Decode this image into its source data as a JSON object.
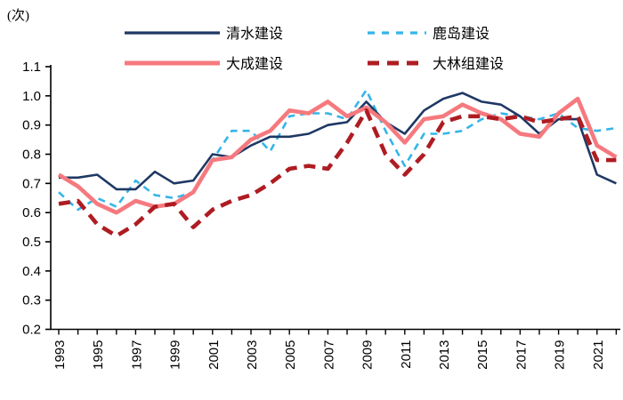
{
  "unit_label": "(次)",
  "legend": [
    {
      "key": "shimizu",
      "label": "清水建设"
    },
    {
      "key": "kajima",
      "label": "鹿岛建设"
    },
    {
      "key": "taisei",
      "label": "大成建设"
    },
    {
      "key": "obayashi",
      "label": "大林组建设"
    }
  ],
  "colors": {
    "shimizu": "#1f3864",
    "kajima": "#35b5e8",
    "taisei": "#f5797e",
    "obayashi": "#ae1c22",
    "axis": "#000000"
  },
  "chart_data": {
    "type": "line",
    "x": [
      1993,
      1994,
      1995,
      1996,
      1997,
      1998,
      1999,
      2000,
      2001,
      2002,
      2003,
      2004,
      2005,
      2006,
      2007,
      2008,
      2009,
      2010,
      2011,
      2012,
      2013,
      2014,
      2015,
      2016,
      2017,
      2018,
      2019,
      2020,
      2021,
      2022
    ],
    "series": [
      {
        "name": "清水建设",
        "key": "shimizu",
        "style": "solid",
        "thick": false,
        "values": [
          0.72,
          0.72,
          0.73,
          0.68,
          0.68,
          0.74,
          0.7,
          0.71,
          0.8,
          0.79,
          0.83,
          0.86,
          0.86,
          0.87,
          0.9,
          0.91,
          0.98,
          0.91,
          0.87,
          0.95,
          0.99,
          1.01,
          0.98,
          0.97,
          0.93,
          0.87,
          0.92,
          0.92,
          0.73,
          0.7
        ]
      },
      {
        "name": "鹿岛建设",
        "key": "kajima",
        "style": "dashed",
        "thick": false,
        "values": [
          0.67,
          0.61,
          0.65,
          0.62,
          0.71,
          0.66,
          0.65,
          0.67,
          0.78,
          0.88,
          0.88,
          0.81,
          0.93,
          0.94,
          0.94,
          0.92,
          1.02,
          0.88,
          0.76,
          0.87,
          0.87,
          0.88,
          0.92,
          0.94,
          0.93,
          0.92,
          0.94,
          0.89,
          0.88,
          0.89
        ]
      },
      {
        "name": "大成建设",
        "key": "taisei",
        "style": "solid",
        "thick": true,
        "values": [
          0.73,
          0.69,
          0.63,
          0.6,
          0.64,
          0.62,
          0.63,
          0.67,
          0.78,
          0.79,
          0.85,
          0.88,
          0.95,
          0.94,
          0.98,
          0.93,
          0.96,
          0.91,
          0.84,
          0.92,
          0.93,
          0.97,
          0.94,
          0.92,
          0.87,
          0.86,
          0.94,
          0.99,
          0.83,
          0.79
        ]
      },
      {
        "name": "大林组建设",
        "key": "obayashi",
        "style": "dashed",
        "thick": true,
        "values": [
          0.63,
          0.64,
          0.56,
          0.52,
          0.56,
          0.62,
          0.63,
          0.55,
          0.61,
          0.64,
          0.66,
          0.7,
          0.75,
          0.76,
          0.75,
          0.84,
          0.95,
          0.8,
          0.73,
          0.8,
          0.91,
          0.93,
          0.93,
          0.92,
          0.93,
          0.91,
          0.92,
          0.93,
          0.78,
          0.78
        ]
      }
    ],
    "title": "",
    "xlabel": "",
    "ylabel": "(次)",
    "ylim": [
      0.2,
      1.1
    ],
    "ytick_step": 0.1,
    "ytick_labels": [
      "0.2",
      "0.3",
      "0.4",
      "0.5",
      "0.6",
      "0.7",
      "0.8",
      "0.9",
      "1.0",
      "1.1"
    ],
    "xtick_labels": [
      "1993",
      "1995",
      "1997",
      "1999",
      "2001",
      "2003",
      "2005",
      "2007",
      "2009",
      "2011",
      "2013",
      "2015",
      "2017",
      "2019",
      "2021"
    ],
    "grid": false,
    "legend_position": "top"
  }
}
